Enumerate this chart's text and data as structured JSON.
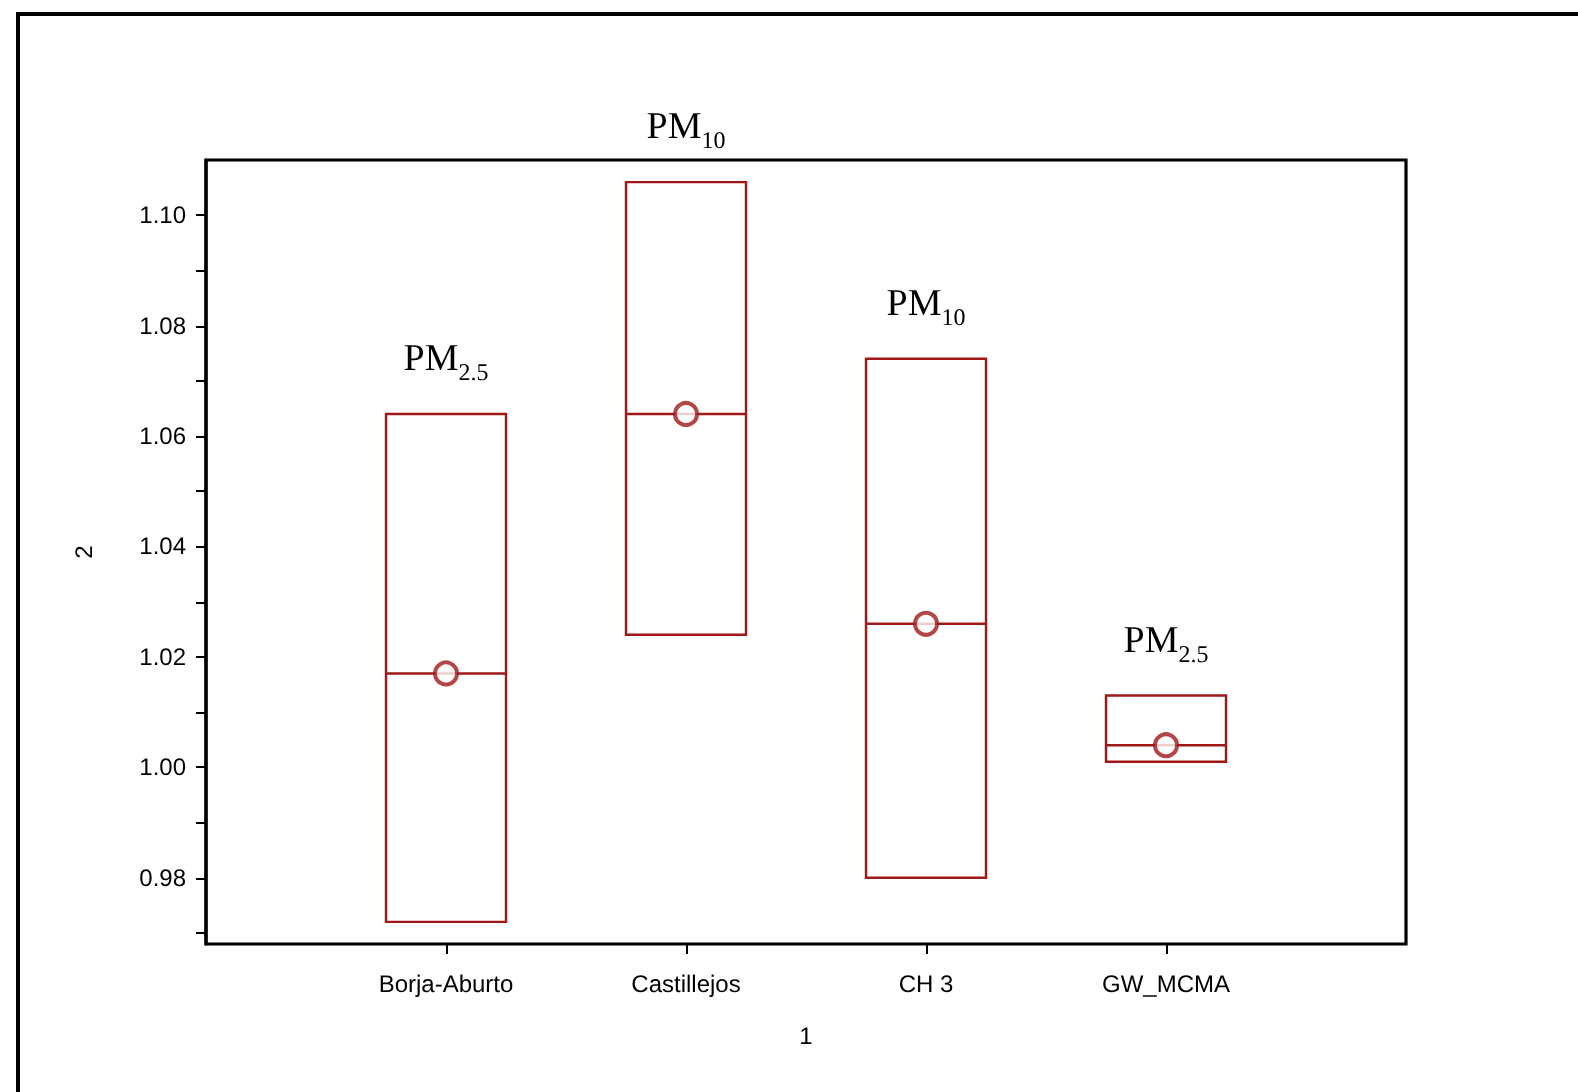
{
  "chart_data": {
    "type": "box",
    "xlabel": "1",
    "ylabel": "2",
    "categories": [
      "Borja-Aburto",
      "Castillejos",
      "CH 3",
      "GW_MCMA"
    ],
    "color": "#a01818",
    "boxes": [
      {
        "low": 0.972,
        "q1": 0.972,
        "median": 1.017,
        "q3": 1.064,
        "high": 1.064,
        "mean": 1.017
      },
      {
        "low": 1.024,
        "q1": 1.024,
        "median": 1.064,
        "q3": 1.106,
        "high": 1.106,
        "mean": 1.064
      },
      {
        "low": 0.98,
        "q1": 0.98,
        "median": 1.026,
        "q3": 1.074,
        "high": 1.074,
        "mean": 1.026
      },
      {
        "low": 1.001,
        "q1": 1.001,
        "median": 1.004,
        "q3": 1.013,
        "high": 1.013,
        "mean": 1.004
      }
    ],
    "ylim": [
      0.968,
      1.11
    ],
    "yticks": [
      {
        "value": 0.97,
        "label": null
      },
      {
        "value": 0.98,
        "label": "0.98"
      },
      {
        "value": 0.99,
        "label": null
      },
      {
        "value": 1.0,
        "label": "1.00"
      },
      {
        "value": 1.01,
        "label": null
      },
      {
        "value": 1.02,
        "label": "1.02"
      },
      {
        "value": 1.03,
        "label": null
      },
      {
        "value": 1.04,
        "label": "1.04"
      },
      {
        "value": 1.05,
        "label": null
      },
      {
        "value": 1.06,
        "label": "1.06"
      },
      {
        "value": 1.07,
        "label": null
      },
      {
        "value": 1.08,
        "label": "1.08"
      },
      {
        "value": 1.09,
        "label": null
      },
      {
        "value": 1.1,
        "label": "1.10"
      }
    ],
    "marker": "circle",
    "grid": false,
    "annotations": [
      {
        "text": "PM$_{2.5}$",
        "x": "Borja-Aburto",
        "y": 1.064
      },
      {
        "text": "PM$_{10}$",
        "x": "Castillejos",
        "y": 1.106
      },
      {
        "text": "PM$_{10}$",
        "x": "CH 3",
        "y": 1.074
      },
      {
        "text": "PM$_{2.5}$",
        "x": "GW_MCMA",
        "y": 1.013
      }
    ]
  }
}
